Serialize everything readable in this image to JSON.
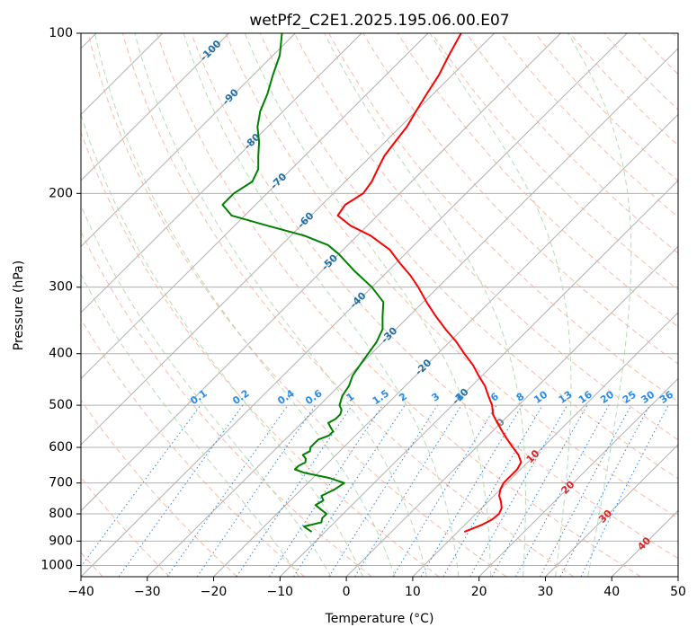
{
  "chart_data": {
    "type": "line",
    "subtype": "skew-T log-P diagram",
    "title": "wetPf2_C2E1.2025.195.06.00.E07",
    "xlabel": "Temperature (°C)",
    "ylabel": "Pressure (hPa)",
    "xlim": [
      -40,
      50
    ],
    "ylim": [
      1050,
      100
    ],
    "y_scale": "log",
    "grid": true,
    "x_ticks": [
      -40,
      -30,
      -20,
      -10,
      0,
      10,
      20,
      30,
      40,
      50
    ],
    "x_tick_labels": [
      "−40",
      "−30",
      "−20",
      "−10",
      "0",
      "10",
      "20",
      "30",
      "40",
      "50"
    ],
    "y_ticks": [
      100,
      200,
      300,
      400,
      500,
      600,
      700,
      800,
      900,
      1000
    ],
    "y_tick_labels": [
      "100",
      "200",
      "300",
      "400",
      "500",
      "600",
      "700",
      "800",
      "900",
      "1000"
    ],
    "skew_isotherms_c": [
      -150,
      -140,
      -130,
      -120,
      -110,
      -100,
      -90,
      -80,
      -70,
      -60,
      -50,
      -40,
      -30,
      -20,
      -10,
      0,
      10,
      20,
      30,
      40,
      50
    ],
    "dry_adiabats_c": [
      -40,
      -30,
      -20,
      -10,
      0,
      10,
      20,
      30,
      40,
      50,
      60,
      70,
      80,
      90,
      100,
      110,
      120,
      130,
      140,
      150,
      160,
      170,
      180,
      190,
      200,
      210
    ],
    "moist_adiabats_c": [
      -10,
      -5,
      0,
      5,
      10,
      15,
      20,
      25,
      30,
      35
    ],
    "mixing_ratio_lines": [
      0.1,
      0.2,
      0.4,
      0.6,
      1,
      1.5,
      2,
      3,
      4,
      6,
      8,
      10,
      13,
      16,
      20,
      25,
      30,
      36
    ],
    "mixing_ratio_labels": [
      "0.1",
      "0.2",
      "0.4",
      "0.6",
      "1",
      "1.5",
      "2",
      "3",
      "4",
      "6",
      "8",
      "10",
      "13",
      "16",
      "20",
      "25",
      "30",
      "36"
    ],
    "isotherm_labels": [
      {
        "text": "-100",
        "p": 108,
        "t": -100
      },
      {
        "text": "-90",
        "p": 132,
        "t": -90
      },
      {
        "text": "-80",
        "p": 160,
        "t": -80
      },
      {
        "text": "-70",
        "p": 190,
        "t": -70
      },
      {
        "text": "-60",
        "p": 225,
        "t": -60
      },
      {
        "text": "-50",
        "p": 270,
        "t": -50
      },
      {
        "text": "-40",
        "p": 318,
        "t": -40
      },
      {
        "text": "-30",
        "p": 370,
        "t": -30
      },
      {
        "text": "-20",
        "p": 425,
        "t": -20
      },
      {
        "text": "-10",
        "p": 482,
        "t": -10
      }
    ],
    "freezing_level_labels": [
      {
        "text": "0",
        "p": 540,
        "t": 0,
        "color": "#808080"
      },
      {
        "text": "10",
        "p": 625,
        "t": 10,
        "color": "#d62728"
      },
      {
        "text": "20",
        "p": 715,
        "t": 20,
        "color": "#d62728"
      },
      {
        "text": "30",
        "p": 810,
        "t": 30,
        "color": "#d62728"
      },
      {
        "text": "40",
        "p": 912,
        "t": 40,
        "color": "#d62728"
      }
    ],
    "series": [
      {
        "name": "Temperature",
        "color": "#ff0000",
        "p": [
          865,
          840,
          820,
          800,
          780,
          760,
          740,
          720,
          700,
          680,
          660,
          640,
          620,
          600,
          580,
          560,
          540,
          520,
          500,
          480,
          460,
          440,
          420,
          400,
          380,
          360,
          340,
          320,
          300,
          285,
          270,
          255,
          240,
          230,
          220,
          210,
          200,
          190,
          180,
          170,
          160,
          150,
          140,
          130,
          120,
          110,
          100
        ],
        "t": [
          11.0,
          12.5,
          13.3,
          13.5,
          13.0,
          12.0,
          10.8,
          10.0,
          9.5,
          9.5,
          9.5,
          9.0,
          7.5,
          5.5,
          3.5,
          1.5,
          -0.5,
          -2.5,
          -4.0,
          -6.0,
          -8.0,
          -10.5,
          -13.0,
          -16.0,
          -19.0,
          -22.5,
          -26.0,
          -29.5,
          -33.0,
          -36.0,
          -39.5,
          -43.0,
          -48.0,
          -52.5,
          -56.0,
          -56.5,
          -55.5,
          -56.0,
          -57.0,
          -58.0,
          -58.5,
          -59.0,
          -60.0,
          -61.0,
          -62.0,
          -63.5,
          -65.0
        ]
      },
      {
        "name": "Dewpoint",
        "color": "#008000",
        "p": [
          865,
          845,
          830,
          815,
          800,
          785,
          770,
          755,
          740,
          720,
          700,
          685,
          670,
          660,
          650,
          640,
          630,
          620,
          610,
          600,
          590,
          580,
          570,
          560,
          550,
          540,
          530,
          520,
          510,
          500,
          480,
          460,
          440,
          420,
          400,
          380,
          370,
          360,
          340,
          320,
          300,
          280,
          260,
          250,
          240,
          230,
          220,
          210,
          200,
          190,
          180,
          170,
          160,
          150,
          140,
          130,
          120,
          110,
          100
        ],
        "t": [
          -12.0,
          -14.0,
          -12.0,
          -12.5,
          -12.5,
          -14.0,
          -15.5,
          -15.0,
          -16.0,
          -15.0,
          -14.5,
          -17.5,
          -22.0,
          -24.0,
          -24.0,
          -23.5,
          -24.0,
          -25.0,
          -24.5,
          -25.0,
          -25.0,
          -25.0,
          -24.0,
          -24.0,
          -25.0,
          -26.0,
          -25.5,
          -25.5,
          -26.0,
          -27.0,
          -28.0,
          -28.5,
          -29.5,
          -30.0,
          -30.5,
          -31.0,
          -31.5,
          -32.0,
          -34.0,
          -36.0,
          -40.0,
          -45.0,
          -50.0,
          -53.0,
          -58.0,
          -65.0,
          -72.0,
          -75.0,
          -75.0,
          -74.0,
          -75.0,
          -77.0,
          -79.0,
          -81.5,
          -83.5,
          -85.0,
          -87.0,
          -89.0,
          -92.0
        ]
      }
    ]
  }
}
